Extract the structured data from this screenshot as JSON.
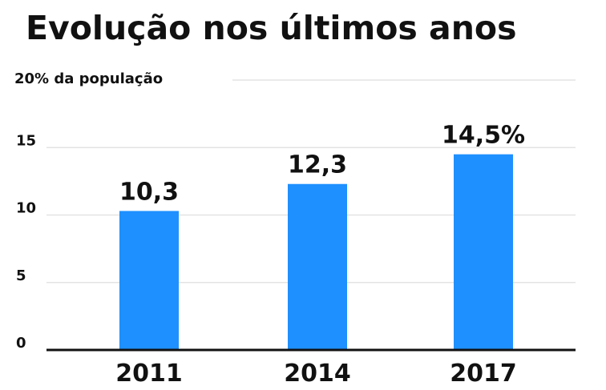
{
  "chart_data": {
    "type": "bar",
    "title": "Evolução nos últimos anos",
    "ylabel": "20% da população",
    "xlabel": "",
    "categories": [
      "2011",
      "2014",
      "2017"
    ],
    "values": [
      10.3,
      12.3,
      14.5
    ],
    "data_labels": [
      "10,3",
      "12,3",
      "14,5%"
    ],
    "yticks": [
      0,
      5,
      10,
      15
    ],
    "ylim": [
      0,
      20
    ],
    "grid": true,
    "legend": "none",
    "bar_color": "#1e90ff",
    "grid_color": "#e3e3e3",
    "axis_color": "#111111"
  }
}
